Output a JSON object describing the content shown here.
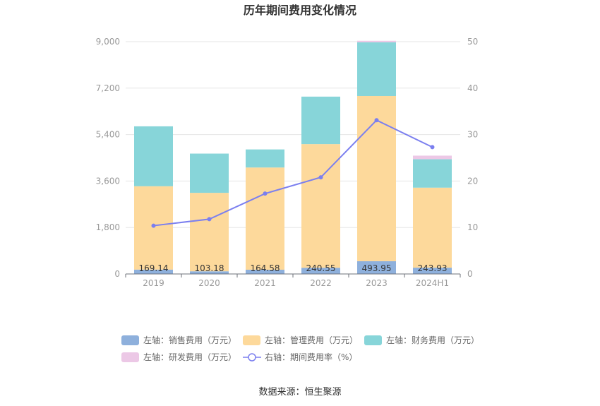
{
  "title": "历年期间费用变化情况",
  "source_text": "数据来源：恒生聚源",
  "colors": {
    "sales": "#8eb0dc",
    "management": "#fdd99b",
    "finance": "#87d5d9",
    "rnd": "#ecc8e6",
    "rate": "#7b7fef"
  },
  "chart_data": {
    "type": "bar",
    "stacked": true,
    "categories": [
      "2019",
      "2020",
      "2021",
      "2022",
      "2023",
      "2024H1"
    ],
    "left_axis": {
      "ticks": [
        "0",
        "1,800",
        "3,600",
        "5,400",
        "7,200",
        "9,000"
      ],
      "range": [
        0,
        9000
      ]
    },
    "right_axis": {
      "ticks": [
        "0",
        "10",
        "20",
        "30",
        "40",
        "50"
      ],
      "range": [
        0,
        50
      ]
    },
    "series": [
      {
        "key": "sales",
        "name": "左轴：销售费用（万元）",
        "axis": "left",
        "values": [
          169.14,
          103.18,
          164.58,
          240.55,
          493.95,
          243.93
        ],
        "labels": [
          "169.14",
          "103.18",
          "164.58",
          "240.55",
          "493.95",
          "243.93"
        ]
      },
      {
        "key": "management",
        "name": "左轴：管理费用（万元）",
        "axis": "left",
        "values": [
          3230,
          3040,
          3960,
          4790,
          6400,
          3100
        ]
      },
      {
        "key": "finance",
        "name": "左轴：财务费用（万元）",
        "axis": "left",
        "values": [
          2320,
          1520,
          700,
          1840,
          2080,
          1100
        ]
      },
      {
        "key": "rnd",
        "name": "左轴：研发费用（万元）",
        "axis": "left",
        "values": [
          0,
          0,
          0,
          0,
          60,
          140
        ]
      },
      {
        "key": "rate",
        "name": "右轴：期间费用率（%）",
        "axis": "right",
        "type": "line",
        "values": [
          10.4,
          11.8,
          17.3,
          20.8,
          33.1,
          27.3
        ]
      }
    ],
    "legend_position": "bottom",
    "grid": true
  }
}
